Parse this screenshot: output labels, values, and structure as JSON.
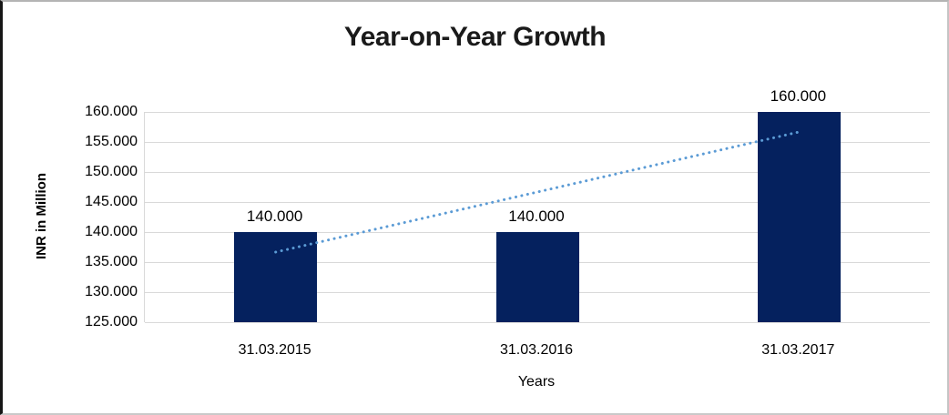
{
  "window": {
    "background": "#ffffff",
    "frame_border_color": "#b4b4b4",
    "left_edge_color": "#161616"
  },
  "chart_data": {
    "type": "bar",
    "title": "Year-on-Year Growth",
    "xlabel": "Years",
    "ylabel": "INR in Million",
    "categories": [
      "31.03.2015",
      "31.03.2016",
      "31.03.2017"
    ],
    "values": [
      140000,
      140000,
      160000
    ],
    "value_labels": [
      "140.000",
      "140.000",
      "160.000"
    ],
    "ylim": [
      125000,
      160000
    ],
    "ytick_step": 5000,
    "ytick_labels": [
      "125.000",
      "130.000",
      "135.000",
      "140.000",
      "145.000",
      "150.000",
      "155.000",
      "160.000"
    ],
    "grid": true,
    "legend": "none",
    "bar_color": "#05215E",
    "gridline_color": "#d9d9d9",
    "trendline": {
      "type": "linear",
      "style": "dotted",
      "color": "#5B9BD5",
      "start_value": 136667,
      "end_value": 156667,
      "start_category_index": 0,
      "end_category_index": 2
    }
  }
}
